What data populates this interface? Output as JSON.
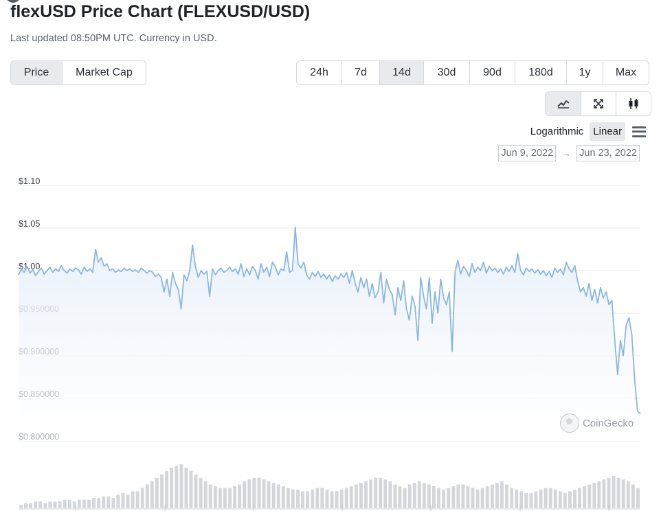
{
  "header": {
    "title": "flexUSD Price Chart (FLEXUSD/USD)",
    "subtitle": "Last updated 08:50PM UTC. Currency in USD."
  },
  "metric_tabs": [
    {
      "label": "Price",
      "active": true
    },
    {
      "label": "Market Cap",
      "active": false
    }
  ],
  "range_tabs": [
    {
      "label": "24h",
      "active": false
    },
    {
      "label": "7d",
      "active": false
    },
    {
      "label": "14d",
      "active": true
    },
    {
      "label": "30d",
      "active": false
    },
    {
      "label": "90d",
      "active": false
    },
    {
      "label": "180d",
      "active": false
    },
    {
      "label": "1y",
      "active": false
    },
    {
      "label": "Max",
      "active": false
    }
  ],
  "chart_type_buttons": [
    {
      "icon": "line-chart-icon",
      "active": true
    },
    {
      "icon": "expand-icon",
      "active": false
    },
    {
      "icon": "candlestick-icon",
      "active": false
    }
  ],
  "scale": {
    "options": [
      "Logarithmic",
      "Linear"
    ],
    "selected": "Linear"
  },
  "date_range": {
    "from": "Jun 9, 2022",
    "to": "Jun 23, 2022",
    "arrow": "→"
  },
  "watermark": "CoinGecko",
  "colors": {
    "line": "#8ab6e0",
    "area_top": "#e9f1fb",
    "volume_bar": "#d3d6da",
    "active_bg": "#e8eaee"
  },
  "chart_data": {
    "type": "line",
    "title": "",
    "xlabel": "",
    "ylabel": "",
    "x_start": "Jun 9, 2022",
    "x_end": "Jun 23, 2022",
    "ylim": [
      0.8,
      1.1
    ],
    "y_ticks": [
      {
        "value": 1.1,
        "label": "$1.10"
      },
      {
        "value": 1.05,
        "label": "$1.05"
      },
      {
        "value": 1.0,
        "label": "$1.00"
      },
      {
        "value": 0.95,
        "label": "$0.950000"
      },
      {
        "value": 0.9,
        "label": "$0.900000"
      },
      {
        "value": 0.85,
        "label": "$0.850000"
      },
      {
        "value": 0.8,
        "label": "$0.800000"
      }
    ],
    "grid": true,
    "legend": "none",
    "series": [
      {
        "values": [
          0.995,
          1.002,
          0.998,
          1.005,
          0.997,
          1.001,
          0.994,
          0.999,
          1.003,
          0.996,
          1.0,
          1.004,
          0.998,
          1.002,
          0.999,
          1.006,
          1.0,
          0.997,
          1.002,
          0.999,
          1.003,
          1.001,
          0.996,
          1.004,
          0.999,
          1.002,
          0.998,
          1.025,
          1.01,
          1.015,
          1.005,
          1.008,
          1.0,
          1.002,
          0.998,
          1.001,
          0.999,
          1.003,
          1.0,
          1.002,
          0.999,
          1.001,
          0.998,
          1.003,
          1.0,
          0.997,
          1.0,
          0.998,
          0.993,
          0.996,
          0.992,
          0.975,
          0.99,
          0.97,
          0.998,
          0.985,
          0.978,
          0.955,
          0.995,
          0.988,
          1.0,
          1.03,
          1.005,
          0.992,
          1.0,
          0.996,
          0.999,
          0.97,
          1.002,
          0.995,
          1.0,
          1.003,
          0.998,
          1.0,
          1.004,
          0.999,
          1.002,
          0.996,
          1.008,
          0.993,
          1.002,
          0.995,
          1.005,
          1.0,
          0.99,
          1.008,
          0.998,
          1.004,
          0.993,
          1.01,
          1.005,
          0.995,
          1.002,
          1.0,
          1.022,
          0.998,
          1.0,
          1.051,
          1.008,
          1.003,
          1.01,
          0.995,
          0.99,
          0.998,
          0.993,
          0.999,
          0.992,
          0.996,
          0.99,
          0.995,
          0.987,
          0.994,
          0.99,
          0.996,
          0.992,
          0.998,
          0.985,
          1.0,
          0.985,
          0.975,
          0.992,
          0.98,
          0.99,
          0.97,
          0.985,
          0.968,
          0.975,
          0.998,
          0.962,
          0.99,
          0.978,
          0.972,
          0.948,
          0.98,
          0.965,
          0.988,
          0.955,
          0.942,
          0.97,
          0.958,
          0.918,
          0.992,
          0.97,
          0.955,
          0.992,
          0.938,
          0.975,
          0.95,
          0.99,
          0.968,
          0.96,
          0.975,
          0.905,
          0.998,
          1.012,
          0.996,
          1.005,
          1.0,
          0.993,
          1.008,
          0.998,
          1.004,
          1.0,
          1.01,
          0.997,
          1.005,
          1.0,
          1.003,
          0.998,
          1.002,
          0.996,
          1.004,
          0.999,
          1.006,
          0.998,
          1.02,
          1.0,
          0.995,
          1.003,
          0.999,
          1.002,
          0.997,
          1.001,
          0.996,
          1.0,
          0.994,
          0.999,
          0.992,
          1.003,
          0.998,
          1.002,
          0.995,
          1.01,
          1.002,
          0.998,
          1.006,
          0.988,
          0.975,
          0.98,
          0.97,
          0.985,
          0.965,
          0.978,
          0.962,
          0.98,
          0.968,
          0.975,
          0.96,
          0.965,
          0.92,
          0.878,
          0.918,
          0.9,
          0.935,
          0.945,
          0.925,
          0.872,
          0.835,
          0.832
        ]
      }
    ],
    "volume": {
      "values": [
        2,
        3,
        3,
        4,
        4,
        3,
        4,
        4,
        4,
        5,
        5,
        4,
        5,
        5,
        5,
        6,
        6,
        7,
        7,
        6,
        8,
        9,
        8,
        10,
        10,
        12,
        14,
        16,
        18,
        20,
        22,
        24,
        25,
        26,
        24,
        22,
        20,
        18,
        16,
        14,
        13,
        12,
        12,
        12,
        13,
        14,
        16,
        17,
        18,
        18,
        17,
        16,
        15,
        14,
        13,
        12,
        11,
        11,
        10,
        10,
        11,
        12,
        12,
        11,
        10,
        10,
        11,
        12,
        13,
        14,
        15,
        16,
        17,
        18,
        18,
        17,
        16,
        14,
        13,
        12,
        14,
        15,
        16,
        15,
        14,
        13,
        12,
        11,
        12,
        13,
        14,
        14,
        13,
        12,
        11,
        12,
        13,
        14,
        15,
        16,
        14,
        12,
        11,
        10,
        9,
        9,
        10,
        11,
        12,
        12,
        11,
        10,
        9,
        10,
        11,
        12,
        13,
        14,
        15,
        16,
        17,
        18,
        19,
        18,
        17,
        16,
        14,
        12
      ]
    }
  }
}
